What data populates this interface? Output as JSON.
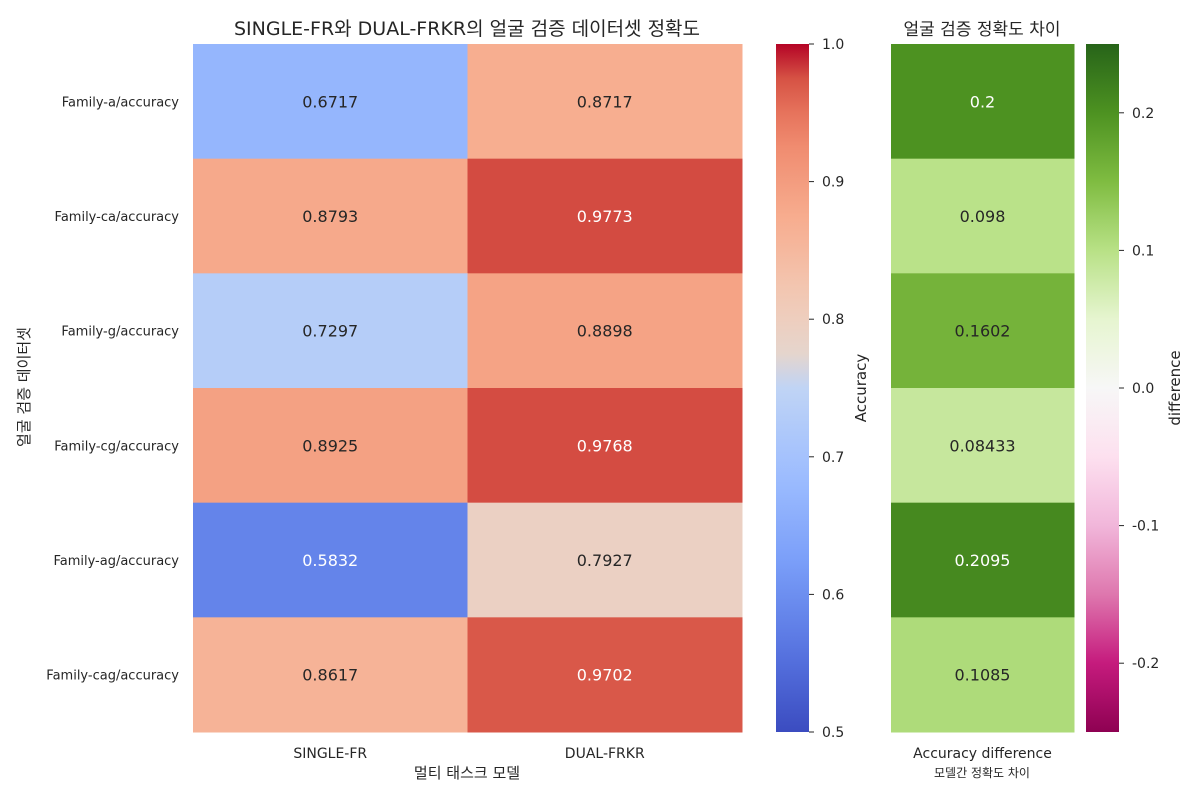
{
  "chart_data": [
    {
      "type": "heatmap",
      "title": "SINGLE-FR와 DUAL-FRKR의 얼굴 검증 데이터셋 정확도",
      "xlabel": "멀티 태스크 모델",
      "ylabel": "얼굴 검증 데이터셋",
      "x_categories": [
        "SINGLE-FR",
        "DUAL-FRKR"
      ],
      "y_categories": [
        "Family-a/accuracy",
        "Family-ca/accuracy",
        "Family-g/accuracy",
        "Family-cg/accuracy",
        "Family-ag/accuracy",
        "Family-cag/accuracy"
      ],
      "values": [
        [
          0.6717,
          0.8717
        ],
        [
          0.8793,
          0.9773
        ],
        [
          0.7297,
          0.8898
        ],
        [
          0.8925,
          0.9768
        ],
        [
          0.5832,
          0.7927
        ],
        [
          0.8617,
          0.9702
        ]
      ],
      "value_labels": [
        [
          "0.6717",
          "0.8717"
        ],
        [
          "0.8793",
          "0.9773"
        ],
        [
          "0.7297",
          "0.8898"
        ],
        [
          "0.8925",
          "0.9768"
        ],
        [
          "0.5832",
          "0.7927"
        ],
        [
          "0.8617",
          "0.9702"
        ]
      ],
      "colormap": "coolwarm",
      "vmin": 0.5,
      "vmax": 1.0,
      "colorbar": {
        "label": "Accuracy",
        "ticks": [
          0.5,
          0.6,
          0.7,
          0.8,
          0.9,
          1.0
        ],
        "tick_labels": [
          "0.5",
          "0.6",
          "0.7",
          "0.8",
          "0.9",
          "1.0"
        ]
      }
    },
    {
      "type": "heatmap",
      "title": "얼굴 검증 정확도 차이",
      "xlabel": "모델간 정확도 차이",
      "ylabel": "",
      "x_categories": [
        "Accuracy difference"
      ],
      "y_categories": [
        "Family-a/accuracy",
        "Family-ca/accuracy",
        "Family-g/accuracy",
        "Family-cg/accuracy",
        "Family-ag/accuracy",
        "Family-cag/accuracy"
      ],
      "values": [
        [
          0.2
        ],
        [
          0.098
        ],
        [
          0.1602
        ],
        [
          0.08433
        ],
        [
          0.2095
        ],
        [
          0.1085
        ]
      ],
      "value_labels": [
        [
          "0.2"
        ],
        [
          "0.098"
        ],
        [
          "0.1602"
        ],
        [
          "0.08433"
        ],
        [
          "0.2095"
        ],
        [
          "0.1085"
        ]
      ],
      "colormap": "PiYG",
      "vmin": -0.25,
      "vmax": 0.25,
      "colorbar": {
        "label": "difference",
        "ticks": [
          -0.2,
          -0.1,
          0.0,
          0.1,
          0.2
        ],
        "tick_labels": [
          "-0.2",
          "-0.1",
          "0.0",
          "0.1",
          "0.2"
        ]
      }
    }
  ]
}
